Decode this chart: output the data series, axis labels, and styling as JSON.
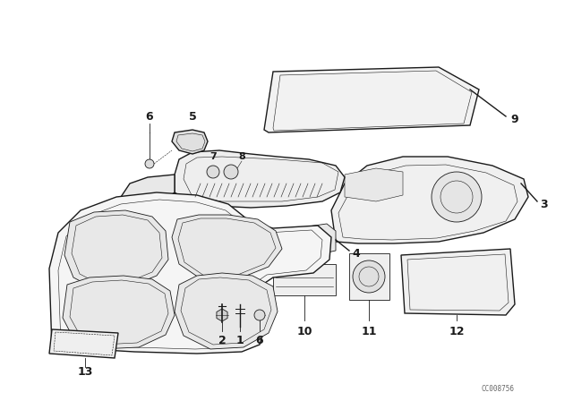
{
  "bg_color": "#ffffff",
  "line_color": "#1a1a1a",
  "fig_width": 6.4,
  "fig_height": 4.48,
  "dpi": 100,
  "watermark": "CC008756"
}
